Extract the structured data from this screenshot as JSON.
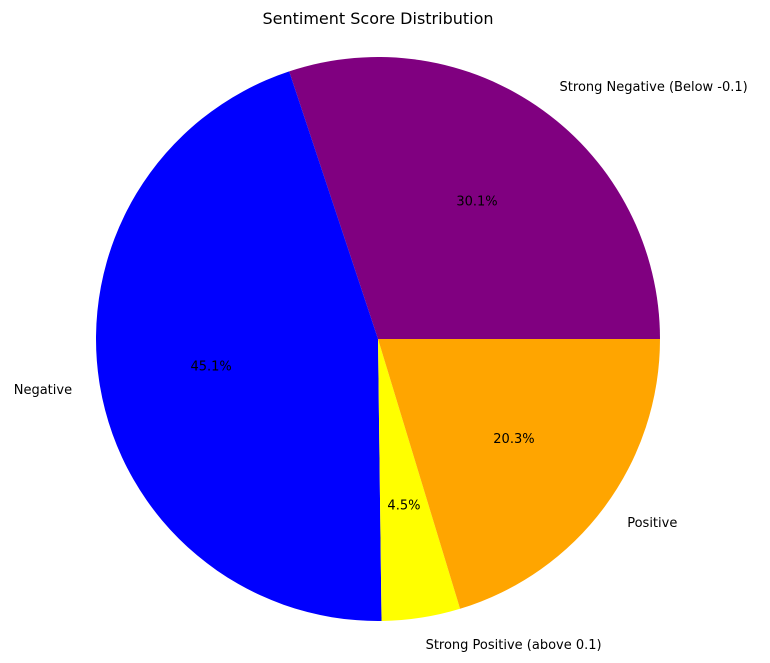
{
  "chart_data": {
    "type": "pie",
    "title": "Sentiment Score Distribution",
    "slices": [
      {
        "label": "Strong Negative (Below -0.1)",
        "value": 30.1,
        "pct_label": "30.1%",
        "color": "#800080"
      },
      {
        "label": "Negative",
        "value": 45.1,
        "pct_label": "45.1%",
        "color": "#0000ff"
      },
      {
        "label": "Strong Positive (above 0.1)",
        "value": 4.5,
        "pct_label": "4.5%",
        "color": "#ffff00"
      },
      {
        "label": "Positive",
        "value": 20.3,
        "pct_label": "20.3%",
        "color": "#ffa500"
      }
    ],
    "start_angle_deg": 0,
    "direction": "counterclockwise"
  }
}
